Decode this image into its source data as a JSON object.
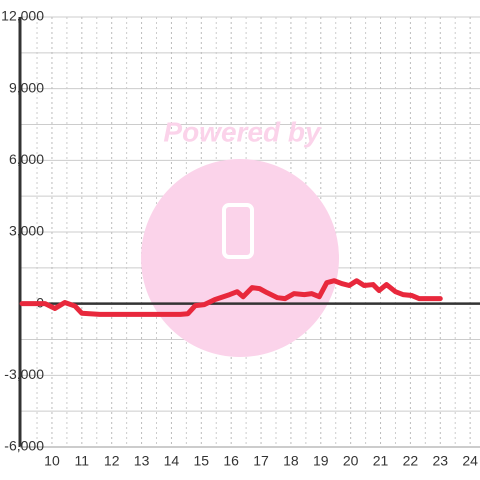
{
  "chart_data": {
    "type": "line",
    "annotations": [
      "Powered by"
    ],
    "x": [
      9.0,
      9.77,
      10.1,
      10.43,
      10.77,
      11.0,
      11.6,
      14.3,
      14.55,
      14.8,
      15.1,
      15.45,
      15.95,
      16.2,
      16.4,
      16.7,
      16.95,
      17.2,
      17.55,
      17.8,
      18.1,
      18.45,
      18.7,
      18.95,
      19.2,
      19.45,
      19.7,
      19.95,
      20.2,
      20.45,
      20.75,
      20.95,
      21.2,
      21.5,
      21.75,
      22.05,
      22.3,
      22.65,
      23.0
    ],
    "series": [
      {
        "color": "#e8283c",
        "values": [
          0,
          0,
          -200,
          50,
          -100,
          -400,
          -450,
          -450,
          -420,
          -80,
          -40,
          170,
          380,
          500,
          290,
          670,
          630,
          460,
          250,
          210,
          420,
          380,
          420,
          290,
          880,
          960,
          840,
          760,
          960,
          760,
          800,
          550,
          800,
          500,
          380,
          340,
          210,
          210,
          210
        ]
      }
    ],
    "xlim": [
      8.93,
      24.33
    ],
    "xticks": [
      10,
      11,
      12,
      13,
      14,
      15,
      16,
      17,
      18,
      19,
      20,
      21,
      22,
      23,
      24
    ],
    "ylim": [
      -6000,
      12000
    ],
    "yticks": [
      {
        "value": -6000,
        "label": "-6,000"
      },
      {
        "value": -3000,
        "label": "-3,000"
      },
      0,
      {
        "value": 3000,
        "label": "3,000"
      },
      {
        "value": 6000,
        "label": "6,000"
      },
      {
        "value": 9000,
        "label": "9,000"
      },
      {
        "value": 12000,
        "label": "12,000"
      }
    ],
    "grid": true
  }
}
